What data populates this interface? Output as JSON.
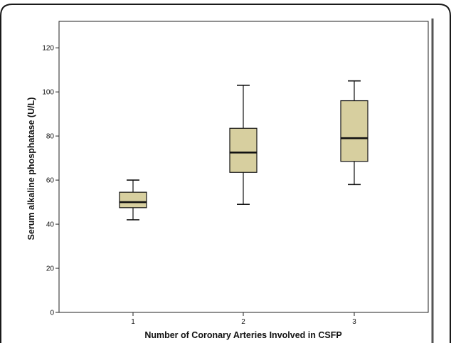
{
  "chart_data": {
    "type": "boxplot",
    "title": "",
    "xlabel": "Number of Coronary Arteries Involved in CSFP",
    "ylabel": "Serum alkaline phosphatase (U/L)",
    "ylim": [
      0,
      132
    ],
    "yticks": [
      0,
      20,
      40,
      60,
      80,
      100,
      120
    ],
    "categories": [
      "1",
      "2",
      "3"
    ],
    "boxes": [
      {
        "category": "1",
        "min": 42,
        "q1": 47.5,
        "median": 50,
        "q3": 54.5,
        "max": 60
      },
      {
        "category": "2",
        "min": 49,
        "q1": 63.5,
        "median": 72.5,
        "q3": 83.5,
        "max": 103
      },
      {
        "category": "3",
        "min": 58,
        "q1": 68.5,
        "median": 79,
        "q3": 96,
        "max": 105
      }
    ],
    "grid": false,
    "legend": "none",
    "colors": {
      "box_fill": "#d7cf9f",
      "stroke": "#111111",
      "frame": "#1a1a1a"
    }
  }
}
